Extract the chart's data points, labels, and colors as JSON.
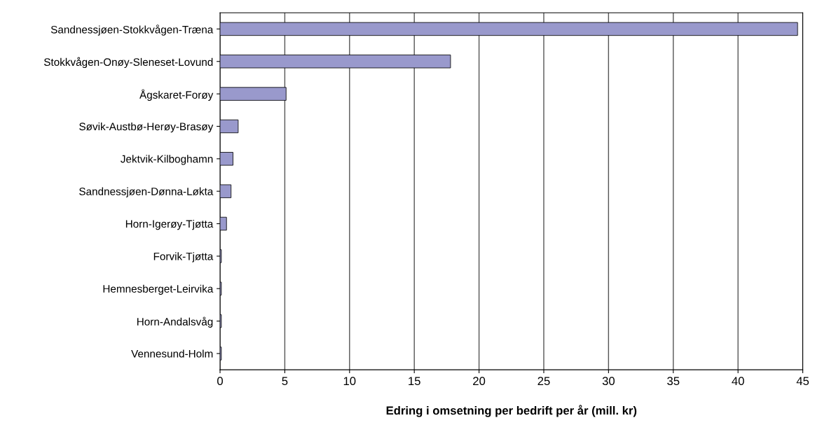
{
  "chart_data": {
    "type": "bar",
    "orientation": "horizontal",
    "xlabel": "Edring i omsetning per bedrift per år (mill. kr)",
    "categories": [
      "Sandnessjøen-Stokkvågen-Træna",
      "Stokkvågen-Onøy-Sleneset-Lovund",
      "Ågskaret-Forøy",
      "Søvik-Austbø-Herøy-Brasøy",
      "Jektvik-Kilboghamn",
      "Sandnessjøen-Dønna-Løkta",
      "Horn-Igerøy-Tjøtta",
      "Forvik-Tjøtta",
      "Hemnesberget-Leirvika",
      "Horn-Andalsvåg",
      "Vennesund-Holm"
    ],
    "values": [
      44.6,
      17.8,
      5.1,
      1.4,
      1.0,
      0.85,
      0.5,
      0.1,
      0.1,
      0.1,
      0.1
    ],
    "color": "#9999cc",
    "xlim": [
      0,
      45
    ],
    "xticks": [
      0,
      5,
      10,
      15,
      20,
      25,
      30,
      35,
      40,
      45
    ],
    "grid": "x"
  }
}
